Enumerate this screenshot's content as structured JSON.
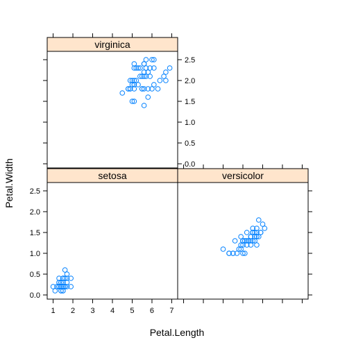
{
  "chart_data": {
    "type": "scatter",
    "layout": "lattice",
    "xlabel": "Petal.Length",
    "ylabel": "Petal.Width",
    "xlim": [
      0.7,
      7.3
    ],
    "ylim": [
      -0.1,
      2.7
    ],
    "x_ticks": [
      1,
      2,
      3,
      4,
      5,
      6,
      7
    ],
    "y_ticks": [
      0.0,
      0.5,
      1.0,
      1.5,
      2.0,
      2.5
    ],
    "y_tick_labels": [
      "0.0",
      "0.5",
      "1.0",
      "1.5",
      "2.0",
      "2.5"
    ],
    "x_tick_labels": [
      "1",
      "2",
      "3",
      "4",
      "5",
      "6",
      "7"
    ],
    "colors": {
      "points": "#0080ff",
      "strip_fill": "#ffe5cc",
      "frame": "#000000"
    },
    "panels": [
      {
        "strip": "virginica",
        "position": "top-left",
        "points": [
          [
            6.0,
            2.5
          ],
          [
            5.1,
            1.9
          ],
          [
            5.9,
            2.1
          ],
          [
            5.6,
            1.8
          ],
          [
            5.8,
            2.2
          ],
          [
            6.6,
            2.1
          ],
          [
            4.5,
            1.7
          ],
          [
            6.3,
            1.8
          ],
          [
            5.8,
            1.8
          ],
          [
            6.1,
            2.5
          ],
          [
            5.1,
            2.0
          ],
          [
            5.3,
            1.9
          ],
          [
            5.5,
            2.1
          ],
          [
            5.0,
            2.0
          ],
          [
            5.1,
            2.4
          ],
          [
            5.3,
            2.3
          ],
          [
            5.5,
            1.8
          ],
          [
            6.7,
            2.2
          ],
          [
            6.9,
            2.3
          ],
          [
            5.0,
            1.5
          ],
          [
            5.7,
            2.3
          ],
          [
            4.9,
            2.0
          ],
          [
            6.7,
            2.0
          ],
          [
            4.9,
            1.8
          ],
          [
            5.7,
            2.1
          ],
          [
            6.0,
            1.8
          ],
          [
            4.8,
            1.8
          ],
          [
            4.9,
            1.8
          ],
          [
            5.6,
            2.1
          ],
          [
            5.8,
            1.6
          ],
          [
            6.1,
            1.9
          ],
          [
            6.4,
            2.0
          ],
          [
            5.6,
            2.2
          ],
          [
            5.1,
            1.5
          ],
          [
            5.6,
            1.4
          ],
          [
            6.1,
            2.3
          ],
          [
            5.6,
            2.4
          ],
          [
            5.5,
            1.8
          ],
          [
            4.8,
            1.8
          ],
          [
            5.4,
            2.1
          ],
          [
            5.6,
            2.4
          ],
          [
            5.1,
            2.3
          ],
          [
            5.1,
            1.9
          ],
          [
            5.9,
            2.3
          ],
          [
            5.7,
            2.5
          ],
          [
            5.2,
            2.3
          ],
          [
            5.0,
            1.9
          ],
          [
            5.2,
            2.0
          ],
          [
            5.4,
            2.3
          ],
          [
            5.1,
            1.8
          ]
        ]
      },
      {
        "strip": "setosa",
        "position": "bottom-left",
        "points": [
          [
            1.4,
            0.2
          ],
          [
            1.4,
            0.2
          ],
          [
            1.3,
            0.2
          ],
          [
            1.5,
            0.2
          ],
          [
            1.4,
            0.2
          ],
          [
            1.7,
            0.4
          ],
          [
            1.4,
            0.3
          ],
          [
            1.5,
            0.2
          ],
          [
            1.4,
            0.2
          ],
          [
            1.5,
            0.1
          ],
          [
            1.5,
            0.2
          ],
          [
            1.6,
            0.2
          ],
          [
            1.4,
            0.1
          ],
          [
            1.1,
            0.1
          ],
          [
            1.2,
            0.2
          ],
          [
            1.5,
            0.4
          ],
          [
            1.3,
            0.4
          ],
          [
            1.4,
            0.3
          ],
          [
            1.7,
            0.3
          ],
          [
            1.5,
            0.3
          ],
          [
            1.7,
            0.2
          ],
          [
            1.5,
            0.4
          ],
          [
            1.0,
            0.2
          ],
          [
            1.7,
            0.5
          ],
          [
            1.9,
            0.2
          ],
          [
            1.6,
            0.2
          ],
          [
            1.6,
            0.4
          ],
          [
            1.5,
            0.2
          ],
          [
            1.4,
            0.2
          ],
          [
            1.6,
            0.2
          ],
          [
            1.6,
            0.2
          ],
          [
            1.5,
            0.4
          ],
          [
            1.5,
            0.1
          ],
          [
            1.4,
            0.2
          ],
          [
            1.5,
            0.2
          ],
          [
            1.2,
            0.2
          ],
          [
            1.3,
            0.2
          ],
          [
            1.4,
            0.1
          ],
          [
            1.3,
            0.2
          ],
          [
            1.5,
            0.2
          ],
          [
            1.3,
            0.3
          ],
          [
            1.3,
            0.3
          ],
          [
            1.3,
            0.2
          ],
          [
            1.6,
            0.6
          ],
          [
            1.9,
            0.4
          ],
          [
            1.4,
            0.3
          ],
          [
            1.6,
            0.2
          ],
          [
            1.4,
            0.2
          ],
          [
            1.5,
            0.2
          ],
          [
            1.4,
            0.2
          ]
        ]
      },
      {
        "strip": "versicolor",
        "position": "bottom-right",
        "points": [
          [
            4.7,
            1.4
          ],
          [
            4.5,
            1.5
          ],
          [
            4.9,
            1.5
          ],
          [
            4.0,
            1.3
          ],
          [
            4.6,
            1.5
          ],
          [
            4.5,
            1.3
          ],
          [
            4.7,
            1.6
          ],
          [
            3.3,
            1.0
          ],
          [
            4.6,
            1.3
          ],
          [
            3.9,
            1.4
          ],
          [
            3.5,
            1.0
          ],
          [
            4.2,
            1.5
          ],
          [
            4.0,
            1.0
          ],
          [
            4.7,
            1.4
          ],
          [
            3.6,
            1.3
          ],
          [
            4.4,
            1.4
          ],
          [
            4.5,
            1.5
          ],
          [
            4.1,
            1.0
          ],
          [
            4.5,
            1.5
          ],
          [
            3.9,
            1.1
          ],
          [
            4.8,
            1.8
          ],
          [
            4.0,
            1.3
          ],
          [
            4.9,
            1.5
          ],
          [
            4.7,
            1.2
          ],
          [
            4.3,
            1.3
          ],
          [
            4.4,
            1.4
          ],
          [
            4.8,
            1.4
          ],
          [
            5.0,
            1.7
          ],
          [
            4.5,
            1.5
          ],
          [
            3.5,
            1.0
          ],
          [
            3.8,
            1.1
          ],
          [
            3.7,
            1.0
          ],
          [
            3.9,
            1.2
          ],
          [
            5.1,
            1.6
          ],
          [
            4.5,
            1.5
          ],
          [
            4.5,
            1.6
          ],
          [
            4.7,
            1.5
          ],
          [
            4.4,
            1.3
          ],
          [
            4.1,
            1.3
          ],
          [
            4.0,
            1.3
          ],
          [
            4.4,
            1.2
          ],
          [
            4.6,
            1.4
          ],
          [
            4.0,
            1.2
          ],
          [
            3.3,
            1.0
          ],
          [
            4.2,
            1.3
          ],
          [
            4.2,
            1.2
          ],
          [
            4.2,
            1.3
          ],
          [
            4.3,
            1.3
          ],
          [
            3.0,
            1.1
          ],
          [
            4.1,
            1.3
          ]
        ]
      }
    ]
  }
}
